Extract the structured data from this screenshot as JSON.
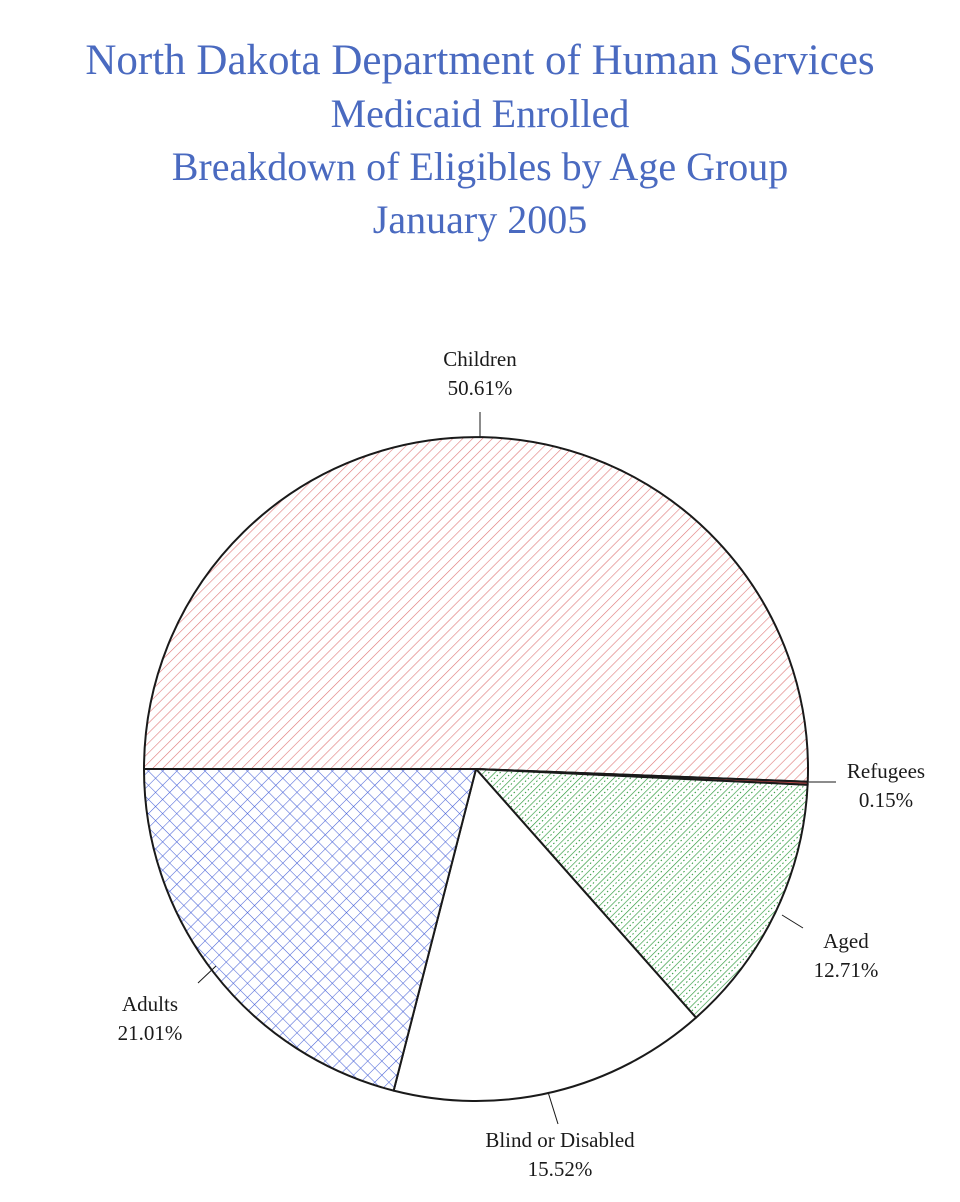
{
  "title_lines": [
    "North Dakota Department of Human Services",
    "Medicaid Enrolled",
    "Breakdown of Eligibles by Age Group",
    "January 2005"
  ],
  "colors": {
    "title": "#4a6ac0",
    "children_hatch": "#e07878",
    "refugees_fill": "#c44a4a",
    "aged_hatch": "#2e9a3c",
    "adults_hatch": "#4a64d8",
    "blind_fill": "#ffffff",
    "outline": "#1a1a1a"
  },
  "chart_data": {
    "type": "pie",
    "title": "North Dakota Department of Human Services Medicaid Enrolled Breakdown of Eligibles by Age Group January 2005",
    "start_angle_deg": 180,
    "direction": "clockwise",
    "slices": [
      {
        "name": "Children",
        "value": 50.61,
        "label": "50.61%",
        "pattern": "hatch-children"
      },
      {
        "name": "Refugees",
        "value": 0.15,
        "label": "0.15%",
        "pattern": "solid-refugees"
      },
      {
        "name": "Aged",
        "value": 12.71,
        "label": "12.71%",
        "pattern": "hatch-aged"
      },
      {
        "name": "Blind or Disabled",
        "value": 15.52,
        "label": "15.52%",
        "pattern": "solid-blind"
      },
      {
        "name": "Adults",
        "value": 21.01,
        "label": "21.01%",
        "pattern": "hatch-adults"
      }
    ]
  }
}
